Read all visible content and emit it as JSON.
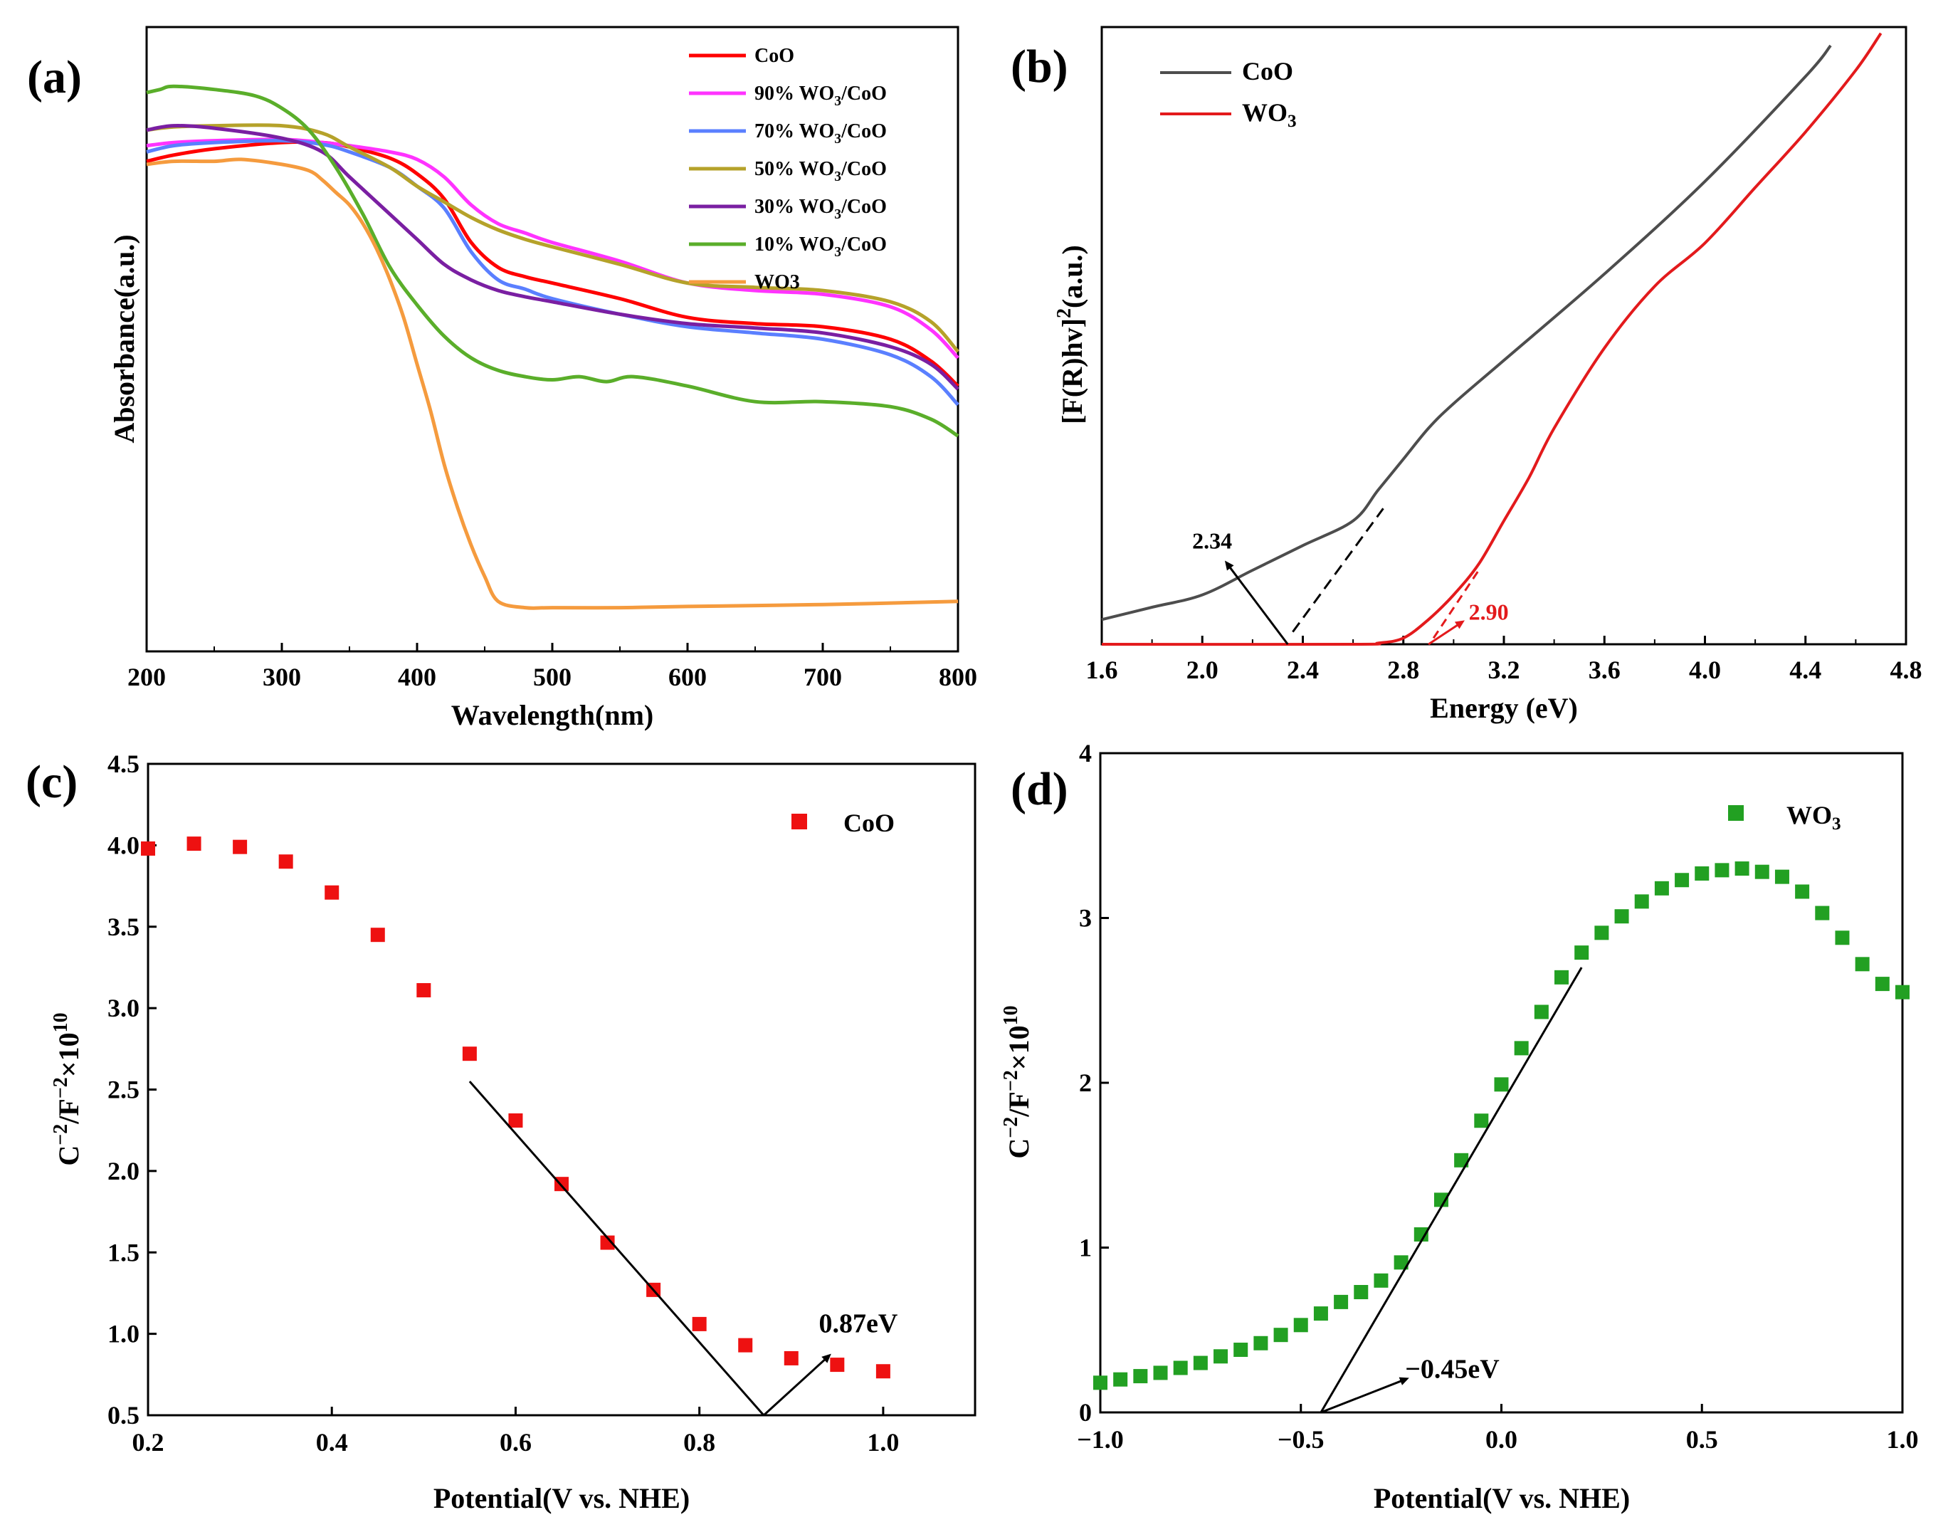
{
  "chart_data": [
    {
      "panel": "(a)",
      "type": "line",
      "xlabel": "Wavelength(nm)",
      "ylabel": "Absorbance(a.u.)",
      "xlim": [
        200,
        800
      ],
      "ylim": [
        0,
        1
      ],
      "xticks": [
        200,
        300,
        400,
        500,
        600,
        700,
        800
      ],
      "series": [
        {
          "name": "CoO",
          "color": "#ff0000",
          "x": [
            200,
            220,
            250,
            300,
            330,
            350,
            380,
            400,
            420,
            440,
            460,
            480,
            500,
            550,
            600,
            650,
            700,
            750,
            780,
            800
          ],
          "y": [
            0.785,
            0.795,
            0.805,
            0.815,
            0.815,
            0.808,
            0.79,
            0.765,
            0.725,
            0.655,
            0.615,
            0.6,
            0.59,
            0.565,
            0.535,
            0.525,
            0.52,
            0.5,
            0.465,
            0.425
          ]
        },
        {
          "name": "90% WO3/CoO",
          "sup": "3",
          "color": "#ff33ff",
          "x": [
            200,
            220,
            250,
            300,
            330,
            350,
            380,
            400,
            420,
            440,
            460,
            480,
            500,
            550,
            600,
            650,
            700,
            750,
            780,
            800
          ],
          "y": [
            0.81,
            0.815,
            0.818,
            0.82,
            0.815,
            0.81,
            0.8,
            0.788,
            0.76,
            0.715,
            0.685,
            0.67,
            0.655,
            0.625,
            0.59,
            0.578,
            0.572,
            0.552,
            0.515,
            0.47
          ]
        },
        {
          "name": "70% WO3/CoO",
          "sup": "3",
          "color": "#5a7fff",
          "x": [
            200,
            220,
            250,
            300,
            330,
            350,
            380,
            400,
            420,
            440,
            460,
            480,
            500,
            550,
            600,
            650,
            700,
            750,
            780,
            800
          ],
          "y": [
            0.8,
            0.81,
            0.815,
            0.818,
            0.812,
            0.8,
            0.775,
            0.745,
            0.71,
            0.64,
            0.595,
            0.58,
            0.565,
            0.54,
            0.52,
            0.51,
            0.5,
            0.475,
            0.44,
            0.395
          ]
        },
        {
          "name": "50% WO3/CoO",
          "sup": "3",
          "color": "#b5a22a",
          "x": [
            200,
            220,
            250,
            300,
            330,
            350,
            380,
            400,
            420,
            440,
            460,
            480,
            500,
            550,
            600,
            650,
            700,
            750,
            780,
            800
          ],
          "y": [
            0.835,
            0.84,
            0.842,
            0.842,
            0.83,
            0.808,
            0.775,
            0.745,
            0.72,
            0.695,
            0.675,
            0.66,
            0.648,
            0.62,
            0.59,
            0.583,
            0.578,
            0.56,
            0.528,
            0.48
          ]
        },
        {
          "name": "30% WO3/CoO",
          "sup": "3",
          "color": "#7a1fa2",
          "x": [
            200,
            220,
            250,
            300,
            330,
            350,
            380,
            400,
            420,
            440,
            460,
            480,
            500,
            550,
            600,
            650,
            700,
            750,
            780,
            800
          ],
          "y": [
            0.835,
            0.842,
            0.838,
            0.822,
            0.8,
            0.76,
            0.7,
            0.66,
            0.62,
            0.595,
            0.578,
            0.568,
            0.56,
            0.54,
            0.525,
            0.518,
            0.51,
            0.488,
            0.46,
            0.42
          ]
        },
        {
          "name": "10% WO3/CoO",
          "sup": "3",
          "color": "#5aae2a",
          "x": [
            200,
            210,
            220,
            250,
            280,
            300,
            320,
            340,
            360,
            380,
            400,
            420,
            440,
            460,
            480,
            500,
            520,
            540,
            560,
            600,
            650,
            700,
            750,
            780,
            800
          ],
          "y": [
            0.895,
            0.9,
            0.905,
            0.9,
            0.89,
            0.87,
            0.835,
            0.775,
            0.7,
            0.615,
            0.555,
            0.505,
            0.47,
            0.45,
            0.44,
            0.435,
            0.44,
            0.432,
            0.44,
            0.425,
            0.4,
            0.4,
            0.392,
            0.372,
            0.345
          ]
        },
        {
          "name": "WO3",
          "color": "#f59b3e",
          "x": [
            200,
            220,
            250,
            270,
            300,
            320,
            330,
            340,
            350,
            360,
            370,
            380,
            390,
            400,
            410,
            420,
            430,
            440,
            450,
            460,
            480,
            500,
            550,
            600,
            700,
            800
          ],
          "y": [
            0.78,
            0.785,
            0.785,
            0.788,
            0.78,
            0.77,
            0.755,
            0.735,
            0.715,
            0.685,
            0.645,
            0.595,
            0.535,
            0.46,
            0.385,
            0.3,
            0.23,
            0.17,
            0.12,
            0.08,
            0.07,
            0.07,
            0.07,
            0.072,
            0.075,
            0.08
          ]
        }
      ]
    },
    {
      "panel": "(b)",
      "type": "line",
      "xlabel": "Energy (eV)",
      "ylabel": "[F(R)hv]",
      "ylabel_sup": "2",
      "ylabel_suffix": "(a.u.)",
      "xlim": [
        1.6,
        4.8
      ],
      "ylim": [
        0,
        1
      ],
      "xticks": [
        "1.6",
        "2.0",
        "2.4",
        "2.8",
        "3.2",
        "3.6",
        "4.0",
        "4.4",
        "4.8"
      ],
      "series": [
        {
          "name": "CoO",
          "color": "#4d4d4d",
          "x": [
            1.6,
            1.8,
            2.0,
            2.2,
            2.4,
            2.6,
            2.7,
            2.8,
            2.9,
            3.0,
            3.2,
            3.6,
            4.0,
            4.4,
            4.5
          ],
          "y": [
            0.04,
            0.06,
            0.08,
            0.12,
            0.16,
            0.2,
            0.25,
            0.3,
            0.35,
            0.39,
            0.46,
            0.6,
            0.75,
            0.92,
            0.97
          ]
        },
        {
          "name": "WO3",
          "sub": "3",
          "color": "#e31a1c",
          "x": [
            1.6,
            2.6,
            2.7,
            2.8,
            2.9,
            3.0,
            3.1,
            3.2,
            3.3,
            3.4,
            3.6,
            3.8,
            4.0,
            4.2,
            4.4,
            4.6,
            4.7
          ],
          "y": [
            0.0,
            0.0,
            0.002,
            0.01,
            0.04,
            0.08,
            0.13,
            0.2,
            0.27,
            0.35,
            0.48,
            0.58,
            0.65,
            0.74,
            0.83,
            0.93,
            0.99
          ]
        }
      ],
      "annotations": [
        {
          "text": "2.34",
          "x": 2.34,
          "color": "#000000"
        },
        {
          "text": "2.90",
          "x": 2.9,
          "color": "#e31a1c"
        }
      ]
    },
    {
      "panel": "(c)",
      "type": "scatter",
      "xlabel": "Potential(V vs. NHE)",
      "ylabel": "C",
      "ylabel_parts": [
        "−2",
        "/F",
        "−2",
        "×10",
        "10"
      ],
      "xlim": [
        0.2,
        1.1
      ],
      "ylim": [
        0.5,
        4.5
      ],
      "xticks": [
        "0.2",
        "0.4",
        "0.6",
        "0.8",
        "1.0"
      ],
      "yticks": [
        "0.5",
        "1.0",
        "1.5",
        "2.0",
        "2.5",
        "3.0",
        "3.5",
        "4.0",
        "4.5"
      ],
      "legend": "CoO",
      "series": [
        {
          "name": "CoO",
          "color": "#ee1111",
          "x": [
            0.2,
            0.25,
            0.3,
            0.35,
            0.4,
            0.45,
            0.5,
            0.55,
            0.6,
            0.65,
            0.7,
            0.75,
            0.8,
            0.85,
            0.9,
            0.95,
            1.0
          ],
          "y": [
            3.98,
            4.01,
            3.99,
            3.9,
            3.71,
            3.45,
            3.11,
            2.72,
            2.31,
            1.92,
            1.56,
            1.27,
            1.06,
            0.93,
            0.85,
            0.81,
            0.77
          ]
        }
      ],
      "fit_line": {
        "x": [
          0.55,
          0.87
        ],
        "y": [
          2.55,
          0.5
        ]
      },
      "annotation": {
        "text": "0.87eV",
        "x": 0.87
      }
    },
    {
      "panel": "(d)",
      "type": "scatter",
      "xlabel": "Potential(V vs. NHE)",
      "ylabel": "C",
      "ylabel_parts": [
        "−2",
        "/F",
        "−2",
        "×10",
        "10"
      ],
      "xlim": [
        -1.0,
        1.0
      ],
      "ylim": [
        0,
        4
      ],
      "xticks": [
        "−1.0",
        "−0.5",
        "0.0",
        "0.5",
        "1.0"
      ],
      "yticks": [
        "0",
        "1",
        "2",
        "3",
        "4"
      ],
      "legend": "WO3",
      "legend_sub": "3",
      "series": [
        {
          "name": "WO3",
          "color": "#22a022",
          "x": [
            -1.0,
            -0.95,
            -0.9,
            -0.85,
            -0.8,
            -0.75,
            -0.7,
            -0.65,
            -0.6,
            -0.55,
            -0.5,
            -0.45,
            -0.4,
            -0.35,
            -0.3,
            -0.25,
            -0.2,
            -0.15,
            -0.1,
            -0.05,
            0.0,
            0.05,
            0.1,
            0.15,
            0.2,
            0.25,
            0.3,
            0.35,
            0.4,
            0.45,
            0.5,
            0.55,
            0.6,
            0.65,
            0.7,
            0.75,
            0.8,
            0.85,
            0.9,
            0.95,
            1.0
          ],
          "y": [
            0.18,
            0.2,
            0.22,
            0.24,
            0.27,
            0.3,
            0.34,
            0.38,
            0.42,
            0.47,
            0.53,
            0.6,
            0.67,
            0.73,
            0.8,
            0.91,
            1.08,
            1.29,
            1.53,
            1.77,
            1.99,
            2.21,
            2.43,
            2.64,
            2.79,
            2.91,
            3.01,
            3.1,
            3.18,
            3.23,
            3.27,
            3.29,
            3.3,
            3.28,
            3.25,
            3.16,
            3.03,
            2.88,
            2.72,
            2.6,
            2.55
          ]
        }
      ],
      "fit_line": {
        "x": [
          -0.45,
          0.2
        ],
        "y": [
          0.0,
          2.7
        ]
      },
      "annotation": {
        "text": "−0.45eV",
        "x": -0.45
      }
    }
  ]
}
